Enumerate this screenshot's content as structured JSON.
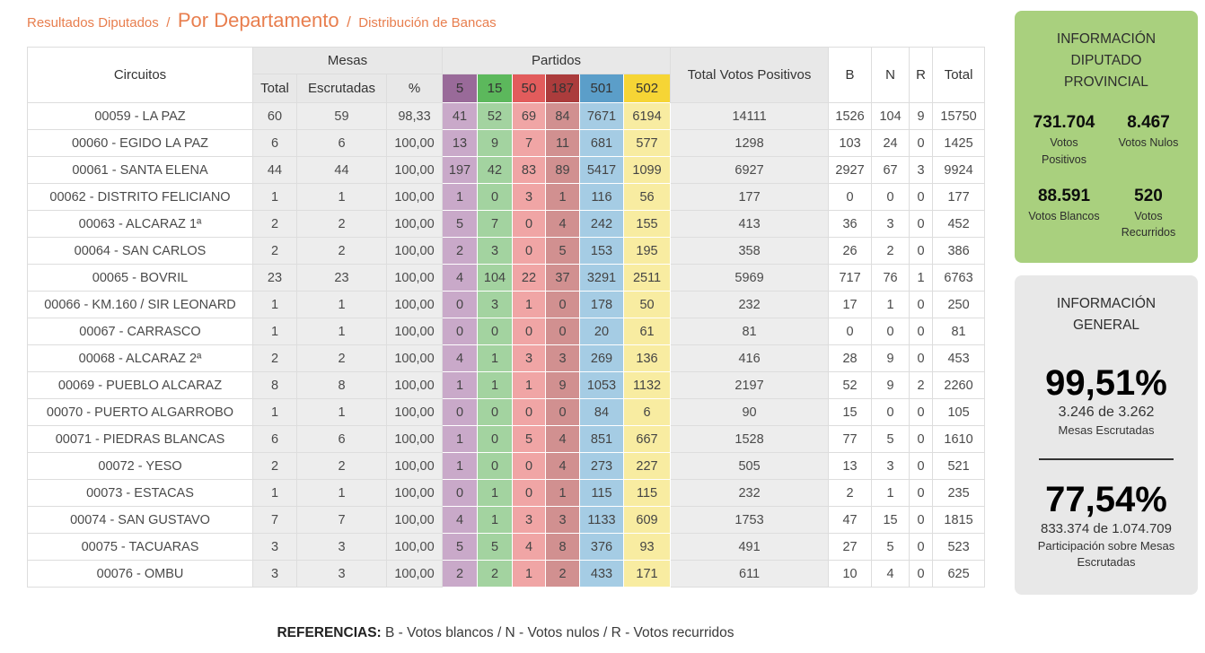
{
  "accent_colors": {
    "breadcrumb_orange": "#e87e4e",
    "panel_green": "#a9d07e",
    "panel_gray": "#e8e8e8"
  },
  "breadcrumb": {
    "items": [
      {
        "label": "Resultados Diputados"
      },
      {
        "label": "Por Departamento"
      },
      {
        "label": "Distribución de Bancas"
      }
    ],
    "separator": "/"
  },
  "table": {
    "headers": {
      "circuitos": "Circuitos",
      "mesas_group": "Mesas",
      "partidos_group": "Partidos",
      "mesas_total": "Total",
      "escrutadas": "Escrutadas",
      "pct": "%",
      "total_votos_positivos": "Total Votos Positivos",
      "b": "B",
      "n": "N",
      "r": "R",
      "total": "Total"
    },
    "parties": [
      {
        "label": "5",
        "header_color": "#996a99",
        "cell_color": "#c9a9c9"
      },
      {
        "label": "15",
        "header_color": "#5cb85c",
        "cell_color": "#a3d3a0"
      },
      {
        "label": "50",
        "header_color": "#e25c5c",
        "cell_color": "#f0a5a5"
      },
      {
        "label": "187",
        "header_color": "#ab3c3c",
        "cell_color": "#d19090"
      },
      {
        "label": "501",
        "header_color": "#5b9ec9",
        "cell_color": "#a5cce4"
      },
      {
        "label": "502",
        "header_color": "#f6d535",
        "cell_color": "#f8eca1"
      }
    ],
    "rows": [
      {
        "circuito": "00059 - LA PAZ",
        "mesas_total": "60",
        "escrutadas": "59",
        "pct": "98,33",
        "partidos": [
          "41",
          "52",
          "69",
          "84",
          "7671",
          "6194"
        ],
        "total_positivos": "14111",
        "b": "1526",
        "n": "104",
        "r": "9",
        "total": "15750"
      },
      {
        "circuito": "00060 - EGIDO LA PAZ",
        "mesas_total": "6",
        "escrutadas": "6",
        "pct": "100,00",
        "partidos": [
          "13",
          "9",
          "7",
          "11",
          "681",
          "577"
        ],
        "total_positivos": "1298",
        "b": "103",
        "n": "24",
        "r": "0",
        "total": "1425"
      },
      {
        "circuito": "00061 - SANTA ELENA",
        "mesas_total": "44",
        "escrutadas": "44",
        "pct": "100,00",
        "partidos": [
          "197",
          "42",
          "83",
          "89",
          "5417",
          "1099"
        ],
        "total_positivos": "6927",
        "b": "2927",
        "n": "67",
        "r": "3",
        "total": "9924"
      },
      {
        "circuito": "00062 - DISTRITO FELICIANO",
        "mesas_total": "1",
        "escrutadas": "1",
        "pct": "100,00",
        "partidos": [
          "1",
          "0",
          "3",
          "1",
          "116",
          "56"
        ],
        "total_positivos": "177",
        "b": "0",
        "n": "0",
        "r": "0",
        "total": "177"
      },
      {
        "circuito": "00063 - ALCARAZ 1ª",
        "mesas_total": "2",
        "escrutadas": "2",
        "pct": "100,00",
        "partidos": [
          "5",
          "7",
          "0",
          "4",
          "242",
          "155"
        ],
        "total_positivos": "413",
        "b": "36",
        "n": "3",
        "r": "0",
        "total": "452"
      },
      {
        "circuito": "00064 - SAN CARLOS",
        "mesas_total": "2",
        "escrutadas": "2",
        "pct": "100,00",
        "partidos": [
          "2",
          "3",
          "0",
          "5",
          "153",
          "195"
        ],
        "total_positivos": "358",
        "b": "26",
        "n": "2",
        "r": "0",
        "total": "386"
      },
      {
        "circuito": "00065 - BOVRIL",
        "mesas_total": "23",
        "escrutadas": "23",
        "pct": "100,00",
        "partidos": [
          "4",
          "104",
          "22",
          "37",
          "3291",
          "2511"
        ],
        "total_positivos": "5969",
        "b": "717",
        "n": "76",
        "r": "1",
        "total": "6763"
      },
      {
        "circuito": "00066 - KM.160 / SIR LEONARD",
        "mesas_total": "1",
        "escrutadas": "1",
        "pct": "100,00",
        "partidos": [
          "0",
          "3",
          "1",
          "0",
          "178",
          "50"
        ],
        "total_positivos": "232",
        "b": "17",
        "n": "1",
        "r": "0",
        "total": "250"
      },
      {
        "circuito": "00067 - CARRASCO",
        "mesas_total": "1",
        "escrutadas": "1",
        "pct": "100,00",
        "partidos": [
          "0",
          "0",
          "0",
          "0",
          "20",
          "61"
        ],
        "total_positivos": "81",
        "b": "0",
        "n": "0",
        "r": "0",
        "total": "81"
      },
      {
        "circuito": "00068 - ALCARAZ 2ª",
        "mesas_total": "2",
        "escrutadas": "2",
        "pct": "100,00",
        "partidos": [
          "4",
          "1",
          "3",
          "3",
          "269",
          "136"
        ],
        "total_positivos": "416",
        "b": "28",
        "n": "9",
        "r": "0",
        "total": "453"
      },
      {
        "circuito": "00069 - PUEBLO ALCARAZ",
        "mesas_total": "8",
        "escrutadas": "8",
        "pct": "100,00",
        "partidos": [
          "1",
          "1",
          "1",
          "9",
          "1053",
          "1132"
        ],
        "total_positivos": "2197",
        "b": "52",
        "n": "9",
        "r": "2",
        "total": "2260"
      },
      {
        "circuito": "00070 - PUERTO ALGARROBO",
        "mesas_total": "1",
        "escrutadas": "1",
        "pct": "100,00",
        "partidos": [
          "0",
          "0",
          "0",
          "0",
          "84",
          "6"
        ],
        "total_positivos": "90",
        "b": "15",
        "n": "0",
        "r": "0",
        "total": "105"
      },
      {
        "circuito": "00071 - PIEDRAS BLANCAS",
        "mesas_total": "6",
        "escrutadas": "6",
        "pct": "100,00",
        "partidos": [
          "1",
          "0",
          "5",
          "4",
          "851",
          "667"
        ],
        "total_positivos": "1528",
        "b": "77",
        "n": "5",
        "r": "0",
        "total": "1610"
      },
      {
        "circuito": "00072 - YESO",
        "mesas_total": "2",
        "escrutadas": "2",
        "pct": "100,00",
        "partidos": [
          "1",
          "0",
          "0",
          "4",
          "273",
          "227"
        ],
        "total_positivos": "505",
        "b": "13",
        "n": "3",
        "r": "0",
        "total": "521"
      },
      {
        "circuito": "00073 - ESTACAS",
        "mesas_total": "1",
        "escrutadas": "1",
        "pct": "100,00",
        "partidos": [
          "0",
          "1",
          "0",
          "1",
          "115",
          "115"
        ],
        "total_positivos": "232",
        "b": "2",
        "n": "1",
        "r": "0",
        "total": "235"
      },
      {
        "circuito": "00074 - SAN GUSTAVO",
        "mesas_total": "7",
        "escrutadas": "7",
        "pct": "100,00",
        "partidos": [
          "4",
          "1",
          "3",
          "3",
          "1133",
          "609"
        ],
        "total_positivos": "1753",
        "b": "47",
        "n": "15",
        "r": "0",
        "total": "1815"
      },
      {
        "circuito": "00075 - TACUARAS",
        "mesas_total": "3",
        "escrutadas": "3",
        "pct": "100,00",
        "partidos": [
          "5",
          "5",
          "4",
          "8",
          "376",
          "93"
        ],
        "total_positivos": "491",
        "b": "27",
        "n": "5",
        "r": "0",
        "total": "523"
      },
      {
        "circuito": "00076 - OMBU",
        "mesas_total": "3",
        "escrutadas": "3",
        "pct": "100,00",
        "partidos": [
          "2",
          "2",
          "1",
          "2",
          "433",
          "171"
        ],
        "total_positivos": "611",
        "b": "10",
        "n": "4",
        "r": "0",
        "total": "625"
      }
    ]
  },
  "panels": {
    "provincial": {
      "title": "INFORMACIÓN DIPUTADO PROVINCIAL",
      "stats": [
        {
          "value": "731.704",
          "label": "Votos Positivos"
        },
        {
          "value": "8.467",
          "label": "Votos Nulos"
        },
        {
          "value": "88.591",
          "label": "Votos Blancos"
        },
        {
          "value": "520",
          "label": "Votos Recurridos"
        }
      ]
    },
    "general": {
      "title": "INFORMACIÓN GENERAL",
      "mesas_pct": "99,51%",
      "mesas_detail": "3.246 de 3.262",
      "mesas_label": "Mesas Escrutadas",
      "participacion_pct": "77,54%",
      "participacion_detail": "833.374 de 1.074.709",
      "participacion_label": "Participación sobre Mesas Escrutadas"
    }
  },
  "references": {
    "label": "REFERENCIAS:",
    "text": "B - Votos blancos / N - Votos nulos / R - Votos recurridos"
  }
}
